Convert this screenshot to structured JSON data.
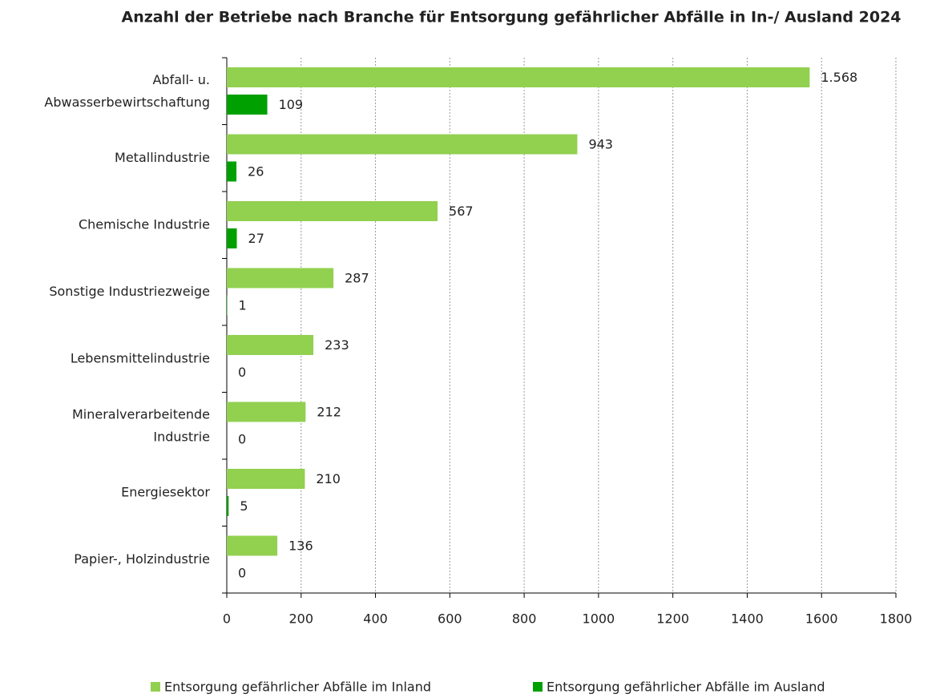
{
  "chart_data": {
    "type": "bar",
    "orientation": "horizontal",
    "title": "Anzahl der Betriebe nach Branche für Entsorgung  gefährlicher Abfälle in In-/ Ausland 2024",
    "categories": [
      "Abfall- u.\nAbwasserbewirtschaftung",
      "Metallindustrie",
      "Chemische Industrie",
      "Sonstige Industriezweige",
      "Lebensmittelindustrie",
      "Mineralverarbeitende\nIndustrie",
      "Energiesektor",
      "Papier-, Holzindustrie"
    ],
    "series": [
      {
        "name": "Entsorgung gefährlicher Abfälle im Inland",
        "color": "#92d050",
        "values": [
          1568,
          943,
          567,
          287,
          233,
          212,
          210,
          136
        ],
        "value_labels": [
          "1.568",
          "943",
          "567",
          "287",
          "233",
          "212",
          "210",
          "136"
        ]
      },
      {
        "name": "Entsorgung gefährlicher Abfälle im Ausland",
        "color": "#00a000",
        "values": [
          109,
          26,
          27,
          1,
          0,
          0,
          5,
          0
        ]
      }
    ],
    "xlim": [
      0,
      1800
    ],
    "xticks": [
      0,
      200,
      400,
      600,
      800,
      1000,
      1200,
      1400,
      1600,
      1800
    ],
    "grid": true,
    "legend": "bottom"
  }
}
